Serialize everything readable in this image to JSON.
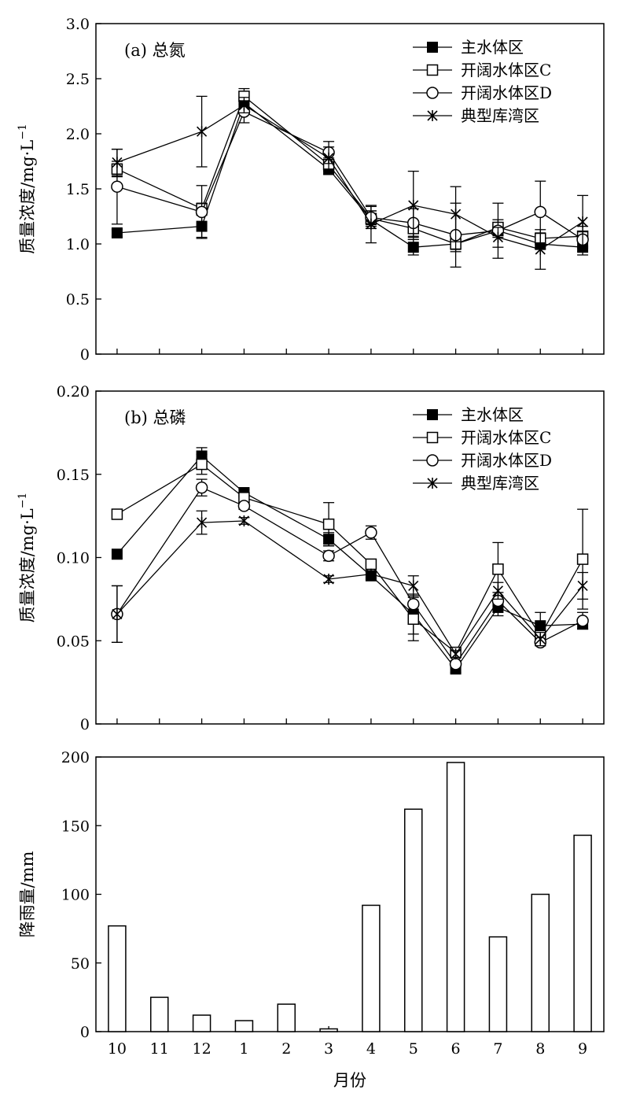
{
  "xlabel": "月份",
  "chart_data": [
    {
      "type": "line",
      "label": "(a) 总氮",
      "ylabel": "质量浓度/mg·L",
      "ylabel_sup": "−1",
      "ylim": [
        0,
        3.0
      ],
      "yticks": [
        0,
        0.5,
        1.0,
        1.5,
        2.0,
        2.5,
        3.0
      ],
      "ytick_labels": [
        "0",
        "0.5",
        "1.0",
        "1.5",
        "2.0",
        "2.5",
        "3.0"
      ],
      "categories": [
        "10",
        "11",
        "12",
        "1",
        "2",
        "3",
        "4",
        "5",
        "6",
        "7",
        "8",
        "9"
      ],
      "legend_position": "top-right",
      "series": [
        {
          "name": "主水体区",
          "marker": "filled-square",
          "points": [
            [
              0,
              1.1,
              0.03
            ],
            [
              2,
              1.16,
              0.1
            ],
            [
              3,
              2.28,
              0.06
            ],
            [
              5,
              1.68,
              0.05
            ],
            [
              6,
              1.22,
              0.08
            ],
            [
              7,
              0.97,
              0.07
            ],
            [
              8,
              1.0,
              0.07
            ],
            [
              9,
              1.12,
              0.06
            ],
            [
              10,
              1.0,
              0.05
            ],
            [
              11,
              0.97,
              0.07
            ]
          ]
        },
        {
          "name": "开阔水体区C",
          "marker": "open-square",
          "points": [
            [
              0,
              1.68,
              0.07
            ],
            [
              2,
              1.32,
              0.05
            ],
            [
              3,
              2.34,
              0.07
            ],
            [
              5,
              1.72,
              0.06
            ],
            [
              6,
              1.23,
              0.07
            ],
            [
              7,
              1.14,
              0.07
            ],
            [
              8,
              1.0,
              0.05
            ],
            [
              9,
              1.15,
              0.07
            ],
            [
              10,
              1.05,
              0.05
            ],
            [
              11,
              1.07,
              0.09
            ]
          ]
        },
        {
          "name": "开阔水体区D",
          "marker": "open-circle",
          "points": [
            [
              0,
              1.52,
              0.34
            ],
            [
              2,
              1.29,
              0.24
            ],
            [
              3,
              2.2,
              0.1
            ],
            [
              5,
              1.83,
              0.1
            ],
            [
              6,
              1.24,
              0.1
            ],
            [
              7,
              1.19,
              0.13
            ],
            [
              8,
              1.08,
              0.29
            ],
            [
              9,
              1.12,
              0.25
            ],
            [
              10,
              1.29,
              0.28
            ],
            [
              11,
              1.04,
              0.07
            ]
          ]
        },
        {
          "name": "典型库湾区",
          "marker": "star",
          "points": [
            [
              0,
              1.74,
              0.12
            ],
            [
              2,
              2.02,
              0.32
            ],
            [
              3,
              2.26,
              0.07
            ],
            [
              5,
              1.78,
              0.1
            ],
            [
              6,
              1.18,
              0.17
            ],
            [
              7,
              1.35,
              0.31
            ],
            [
              8,
              1.27,
              0.25
            ],
            [
              9,
              1.06,
              0.09
            ],
            [
              10,
              0.95,
              0.18
            ],
            [
              11,
              1.2,
              0.24
            ]
          ]
        }
      ]
    },
    {
      "type": "line",
      "label": "(b) 总磷",
      "ylabel": "质量浓度/mg·L",
      "ylabel_sup": "−1",
      "ylim": [
        0,
        0.2
      ],
      "yticks": [
        0,
        0.05,
        0.1,
        0.15,
        0.2
      ],
      "ytick_labels": [
        "0",
        "0.05",
        "0.10",
        "0.15",
        "0.20"
      ],
      "categories": [
        "10",
        "11",
        "12",
        "1",
        "2",
        "3",
        "4",
        "5",
        "6",
        "7",
        "8",
        "9"
      ],
      "legend_position": "top-right",
      "series": [
        {
          "name": "主水体区",
          "marker": "filled-square",
          "points": [
            [
              0,
              0.102,
              0
            ],
            [
              2,
              0.161,
              0.005
            ],
            [
              3,
              0.139,
              0.002
            ],
            [
              5,
              0.111,
              0.004
            ],
            [
              6,
              0.089,
              0.002
            ],
            [
              7,
              0.066,
              0.012
            ],
            [
              8,
              0.033,
              0.002
            ],
            [
              9,
              0.07,
              0.005
            ],
            [
              10,
              0.059,
              0.008
            ],
            [
              11,
              0.06,
              0.003
            ]
          ]
        },
        {
          "name": "开阔水体区C",
          "marker": "open-square",
          "points": [
            [
              0,
              0.126,
              0.003
            ],
            [
              2,
              0.156,
              0.006
            ],
            [
              3,
              0.136,
              0.003
            ],
            [
              5,
              0.12,
              0.013
            ],
            [
              6,
              0.096,
              0.003
            ],
            [
              7,
              0.063,
              0.013
            ],
            [
              8,
              0.043,
              0.002
            ],
            [
              9,
              0.093,
              0.016
            ],
            [
              10,
              0.053,
              0.004
            ],
            [
              11,
              0.099,
              0.03
            ]
          ]
        },
        {
          "name": "开阔水体区D",
          "marker": "open-circle",
          "points": [
            [
              0,
              0.066,
              0.017
            ],
            [
              2,
              0.142,
              0.005
            ],
            [
              3,
              0.131,
              0.002
            ],
            [
              5,
              0.101,
              0.003
            ],
            [
              6,
              0.115,
              0.004
            ],
            [
              7,
              0.072,
              0.005
            ],
            [
              8,
              0.036,
              0.002
            ],
            [
              9,
              0.074,
              0.005
            ],
            [
              10,
              0.049,
              0.002
            ],
            [
              11,
              0.062,
              0.005
            ]
          ]
        },
        {
          "name": "典型库湾区",
          "marker": "star",
          "points": [
            [
              0,
              0.066,
              0.017
            ],
            [
              2,
              0.121,
              0.007
            ],
            [
              3,
              0.122,
              0.002
            ],
            [
              5,
              0.087,
              0.002
            ],
            [
              6,
              0.09,
              0.002
            ],
            [
              7,
              0.083,
              0.006
            ],
            [
              8,
              0.042,
              0.002
            ],
            [
              9,
              0.08,
              0.005
            ],
            [
              10,
              0.051,
              0.004
            ],
            [
              11,
              0.083,
              0.008
            ]
          ]
        }
      ]
    },
    {
      "type": "bar",
      "ylabel": "降雨量/mm",
      "ylim": [
        0,
        200
      ],
      "yticks": [
        0,
        50,
        100,
        150,
        200
      ],
      "ytick_labels": [
        "0",
        "50",
        "100",
        "150",
        "200"
      ],
      "categories": [
        "10",
        "11",
        "12",
        "1",
        "2",
        "3",
        "4",
        "5",
        "6",
        "7",
        "8",
        "9"
      ],
      "values": [
        77,
        25,
        12,
        8,
        20,
        2,
        92,
        162,
        196,
        69,
        100,
        143
      ]
    }
  ]
}
